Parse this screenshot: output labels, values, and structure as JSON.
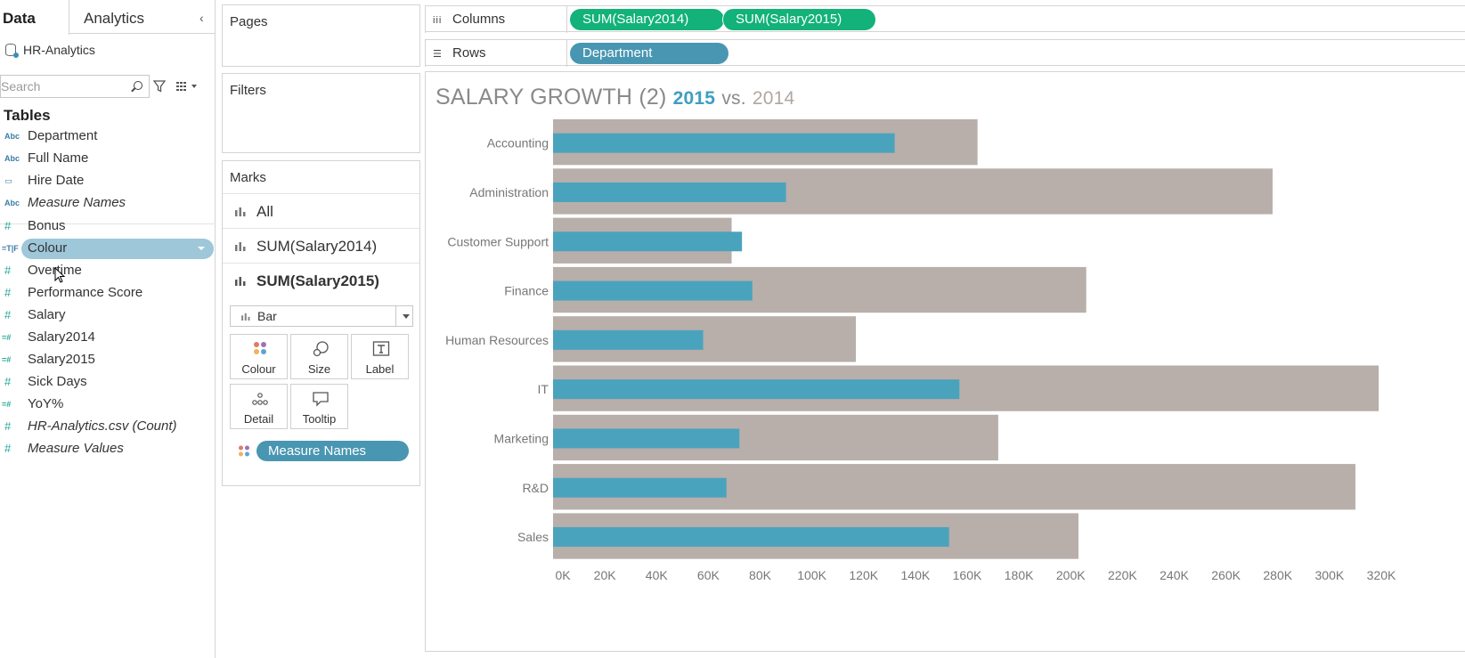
{
  "data_pane": {
    "tab_data": "Data",
    "tab_analytics": "Analytics",
    "collapse_glyph": "‹",
    "datasource": "HR-Analytics",
    "search_placeholder": "Search",
    "tables_heading": "Tables",
    "dimensions": [
      {
        "type": "Abc",
        "name": "Department",
        "italic": false
      },
      {
        "type": "Abc",
        "name": "Full Name",
        "italic": false
      },
      {
        "type": "date",
        "name": "Hire Date",
        "italic": false
      },
      {
        "type": "Abc",
        "name": "Measure Names",
        "italic": true
      }
    ],
    "measures": [
      {
        "type": "#",
        "name": "Bonus",
        "italic": false
      },
      {
        "type": "=T|F",
        "name": "Colour",
        "italic": false,
        "selected": true
      },
      {
        "type": "#",
        "name": "Overtime",
        "italic": false
      },
      {
        "type": "#",
        "name": "Performance Score",
        "italic": false
      },
      {
        "type": "#",
        "name": "Salary",
        "italic": false
      },
      {
        "type": "=#",
        "name": "Salary2014",
        "italic": false
      },
      {
        "type": "=#",
        "name": "Salary2015",
        "italic": false
      },
      {
        "type": "#",
        "name": "Sick Days",
        "italic": false
      },
      {
        "type": "=#",
        "name": "YoY%",
        "italic": false
      },
      {
        "type": "#",
        "name": "HR-Analytics.csv (Count)",
        "italic": true
      },
      {
        "type": "#",
        "name": "Measure Values",
        "italic": true
      }
    ]
  },
  "cards": {
    "pages": "Pages",
    "filters": "Filters",
    "marks": "Marks"
  },
  "marks": {
    "rows": [
      "All",
      "SUM(Salary2014)",
      "SUM(Salary2015)"
    ],
    "mark_type": "Bar",
    "buttons": [
      "Colour",
      "Size",
      "Label",
      "Detail",
      "Tooltip"
    ],
    "colour_pill": "Measure Names"
  },
  "shelves": {
    "columns_label": "Columns",
    "rows_label": "Rows",
    "columns_pills": [
      "SUM(Salary2014)",
      "SUM(Salary2015)"
    ],
    "rows_pills": [
      "Department"
    ]
  },
  "viz": {
    "title_main": "SALARY GROWTH (2)",
    "title_2015": "2015",
    "title_vs": "vs.",
    "title_2014": "2014"
  },
  "colors": {
    "bar_2014": "#b8aeaa",
    "bar_2015": "#4aa3bd",
    "pill_green": "#12b27a",
    "pill_blue": "#4996b2",
    "axis_text": "#777777"
  },
  "chart_data": {
    "type": "bar",
    "orientation": "horizontal",
    "categories": [
      "Accounting",
      "Administration",
      "Customer Support",
      "Finance",
      "Human Resources",
      "IT",
      "Marketing",
      "R&D",
      "Sales"
    ],
    "series": [
      {
        "name": "SUM(Salary2014)",
        "values": [
          164000,
          278000,
          69000,
          206000,
          117000,
          319000,
          172000,
          310000,
          203000
        ]
      },
      {
        "name": "SUM(Salary2015)",
        "values": [
          132000,
          90000,
          73000,
          77000,
          58000,
          157000,
          72000,
          67000,
          153000
        ]
      }
    ],
    "x_ticks": [
      "0K",
      "20K",
      "40K",
      "60K",
      "80K",
      "100K",
      "120K",
      "140K",
      "160K",
      "180K",
      "200K",
      "220K",
      "240K",
      "260K",
      "280K",
      "300K",
      "320K"
    ],
    "xlim": [
      0,
      320000
    ],
    "grid": false,
    "legend": "none"
  }
}
